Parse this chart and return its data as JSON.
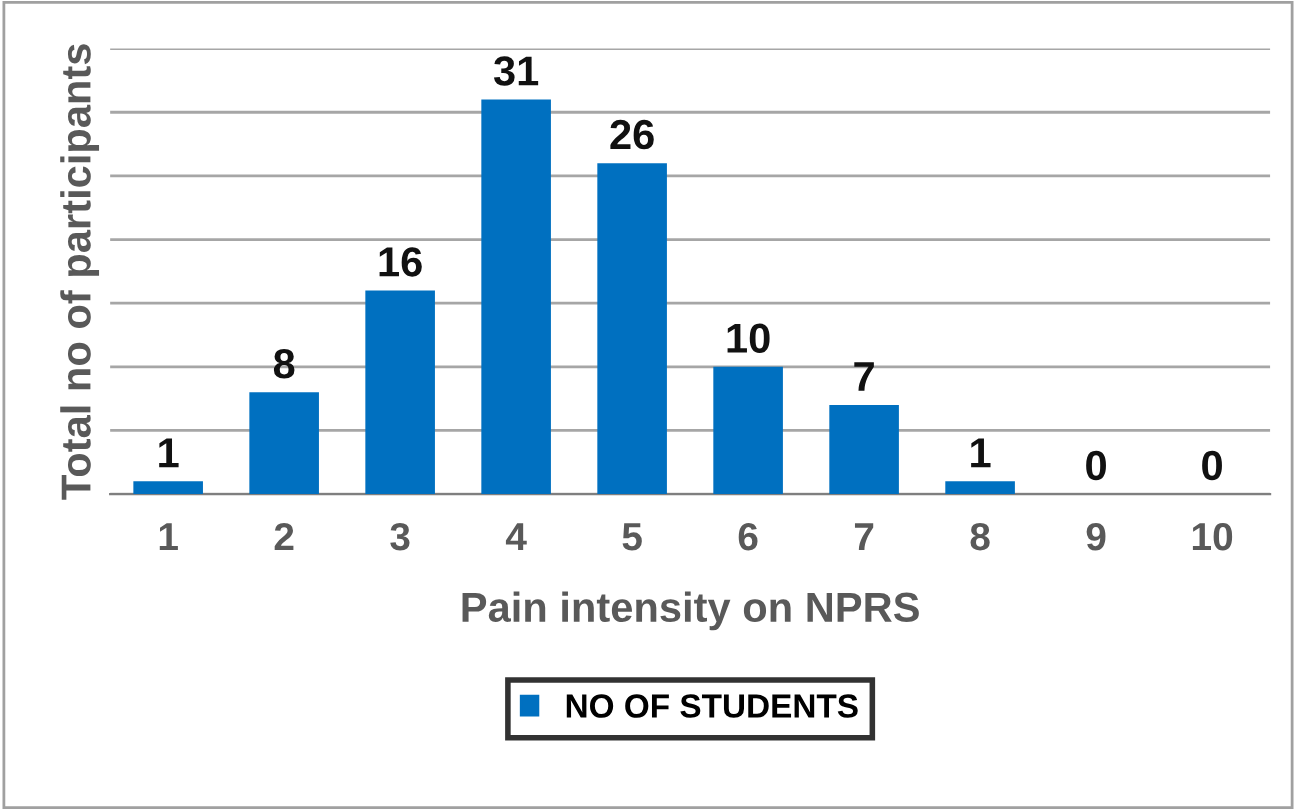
{
  "chart_data": {
    "type": "bar",
    "xlabel": "Pain intensity on NPRS",
    "ylabel": "Total no of participants",
    "categories": [
      "1",
      "2",
      "3",
      "4",
      "5",
      "6",
      "7",
      "8",
      "9",
      "10"
    ],
    "series": [
      {
        "name": "NO OF STUDENTS",
        "color": "#0070c0",
        "values": [
          1,
          8,
          16,
          31,
          26,
          10,
          7,
          1,
          0,
          0
        ]
      }
    ],
    "ylim": [
      0,
      35
    ],
    "yticks": [
      {
        "value": 0,
        "label": null
      },
      {
        "value": 5,
        "label": null
      },
      {
        "value": 10,
        "label": null
      },
      {
        "value": 15,
        "label": null
      },
      {
        "value": 20,
        "label": null
      },
      {
        "value": 25,
        "label": null
      },
      {
        "value": 30,
        "label": null
      },
      {
        "value": 35,
        "label": null
      }
    ],
    "tick_labels": "x",
    "grid": "y",
    "data_labels": true,
    "legend": "bottom"
  }
}
